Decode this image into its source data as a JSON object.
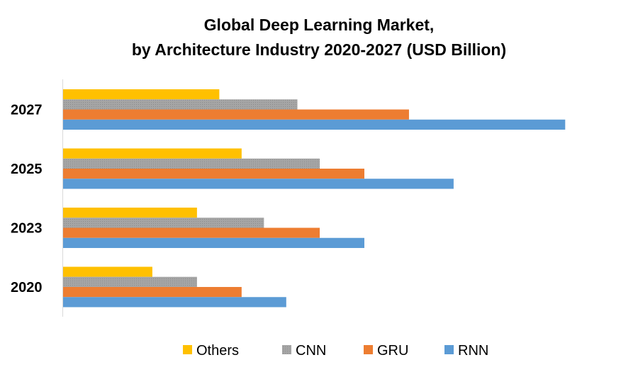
{
  "chart_data": {
    "type": "bar",
    "orientation": "horizontal",
    "title": "Global Deep Learning Market,",
    "subtitle": "by Architecture Industry 2020-2027 (USD Billion)",
    "categories": [
      "2027",
      "2025",
      "2023",
      "2020"
    ],
    "series": [
      {
        "name": "Others",
        "color": "#ffc000",
        "values": [
          7,
          8,
          6,
          4
        ]
      },
      {
        "name": "CNN",
        "color": "#a5a5a5",
        "values": [
          10.5,
          11.5,
          9,
          6
        ]
      },
      {
        "name": "GRU",
        "color": "#ed7d31",
        "values": [
          15.5,
          13.5,
          11.5,
          8
        ]
      },
      {
        "name": "RNN",
        "color": "#5b9bd5",
        "values": [
          22.5,
          17.5,
          13.5,
          10
        ]
      }
    ],
    "xlim": [
      0,
      25
    ],
    "grid": false,
    "value_axis_visible": false,
    "legend": "bottom"
  }
}
